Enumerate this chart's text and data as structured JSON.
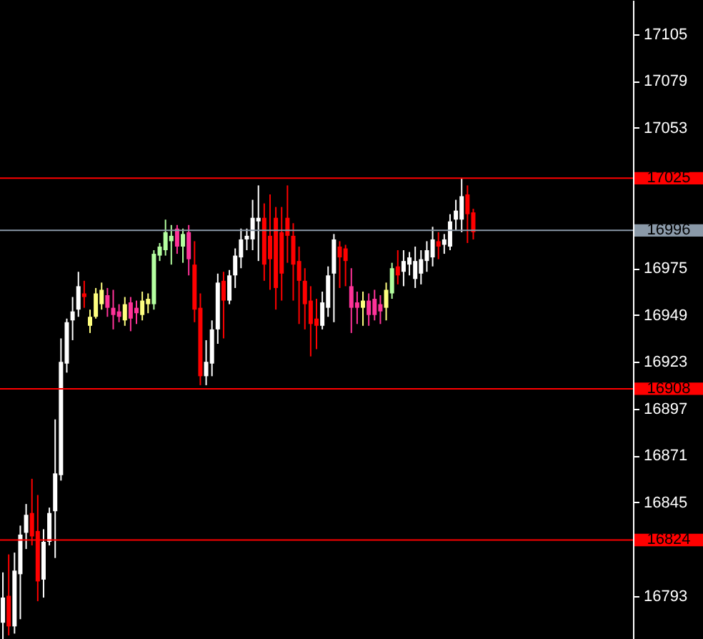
{
  "chart_data": {
    "type": "candlestick",
    "categories": [
      null,
      null,
      null,
      null,
      null,
      null,
      null,
      null,
      null,
      null,
      null,
      null,
      null,
      null,
      null,
      null,
      null,
      null,
      null,
      null,
      null,
      null,
      null,
      null,
      null,
      null,
      null,
      null,
      null,
      null,
      null,
      null,
      null,
      null,
      null,
      null,
      null,
      null,
      null,
      null,
      null,
      null,
      null,
      null,
      null,
      null,
      null,
      null,
      null,
      null,
      null,
      null,
      null,
      null,
      null,
      null,
      null,
      null,
      null,
      null,
      null,
      null,
      null,
      null,
      null,
      null,
      null,
      null,
      null,
      null,
      null,
      null,
      null,
      null,
      null,
      null,
      null,
      null,
      null,
      null,
      null,
      null,
      null,
      null,
      null,
      null,
      null,
      null,
      null,
      null,
      null,
      null,
      null,
      null,
      null,
      null,
      null,
      null,
      null,
      null,
      null,
      null,
      null,
      null,
      null,
      null,
      null,
      null,
      null
    ],
    "ohlc": [
      [
        16778,
        16806,
        16769,
        16792
      ],
      [
        16793,
        16816,
        16771,
        16776
      ],
      [
        16776,
        16817,
        16772,
        16807
      ],
      [
        16805,
        16832,
        16780,
        16827
      ],
      [
        16828,
        16844,
        16819,
        16838
      ],
      [
        16839,
        16858,
        16821,
        16826
      ],
      [
        16829,
        16849,
        16790,
        16801
      ],
      [
        16802,
        16830,
        16792,
        16823
      ],
      [
        16823,
        16842,
        16821,
        16839
      ],
      [
        16840,
        16891,
        16814,
        16861
      ],
      [
        16860,
        16936,
        16857,
        16923
      ],
      [
        16922,
        16947,
        16917,
        16945
      ],
      [
        16946,
        16959,
        16935,
        16951
      ],
      [
        16952,
        16973,
        16948,
        16965
      ],
      [
        16961,
        16968,
        16953,
        16959
      ],
      [
        16943,
        16952,
        16939,
        16948
      ],
      [
        16948,
        16964,
        16947,
        16961
      ],
      [
        16955,
        16967,
        16952,
        16963
      ],
      [
        16960,
        16964,
        16948,
        16953
      ],
      [
        16953,
        16963,
        16941,
        16949
      ],
      [
        16951,
        16955,
        16945,
        16948
      ],
      [
        16946,
        16959,
        16943,
        16955
      ],
      [
        16956,
        16959,
        16940,
        16947
      ],
      [
        16953,
        16957,
        16944,
        16950
      ],
      [
        16949,
        16962,
        16946,
        16957
      ],
      [
        16955,
        16961,
        16950,
        16958
      ],
      [
        16955,
        16985,
        16952,
        16983
      ],
      [
        16982,
        16989,
        16979,
        16987
      ],
      [
        16985,
        17002,
        16982,
        16995
      ],
      [
        16990,
        16999,
        16977,
        16993
      ],
      [
        16997,
        16999,
        16983,
        16987
      ],
      [
        16987,
        16997,
        16978,
        16994
      ],
      [
        16995,
        16999,
        16971,
        16980
      ],
      [
        16977,
        16990,
        16945,
        16952
      ],
      [
        16953,
        16961,
        16910,
        16915
      ],
      [
        16915,
        16935,
        16910,
        16923
      ],
      [
        16922,
        16946,
        16915,
        16941
      ],
      [
        16941,
        16972,
        16933,
        16967
      ],
      [
        16968,
        16973,
        16936,
        16957
      ],
      [
        16957,
        16974,
        16955,
        16971
      ],
      [
        16971,
        16986,
        16964,
        16982
      ],
      [
        16981,
        16997,
        16975,
        16991
      ],
      [
        16991,
        16997,
        16985,
        16993
      ],
      [
        16991,
        17013,
        16985,
        17003
      ],
      [
        17001,
        17021,
        16979,
        17003
      ],
      [
        17003,
        17011,
        16968,
        16977
      ],
      [
        16993,
        17016,
        16963,
        16980
      ],
      [
        17003,
        17009,
        16952,
        16964
      ],
      [
        16995,
        17009,
        16957,
        16972
      ],
      [
        17003,
        17021,
        16978,
        16993
      ],
      [
        16993,
        17000,
        16957,
        16977
      ],
      [
        16979,
        16987,
        16944,
        16968
      ],
      [
        16968,
        16975,
        16941,
        16955
      ],
      [
        16957,
        16965,
        16926,
        16944
      ],
      [
        16947,
        16958,
        16930,
        16943
      ],
      [
        16943,
        16962,
        16941,
        16956
      ],
      [
        16953,
        16976,
        16948,
        16971
      ],
      [
        16972,
        16994,
        16945,
        16991
      ],
      [
        16987,
        16990,
        16964,
        16981
      ],
      [
        16986,
        16988,
        16965,
        16979
      ],
      [
        16965,
        16975,
        16939,
        16953
      ],
      [
        16956,
        16962,
        16944,
        16953
      ],
      [
        16953,
        16962,
        16943,
        16957
      ],
      [
        16957,
        16961,
        16943,
        16949
      ],
      [
        16958,
        16963,
        16946,
        16949
      ],
      [
        16955,
        16960,
        16944,
        16951
      ],
      [
        16953,
        16967,
        16946,
        16963
      ],
      [
        16961,
        16978,
        16958,
        16975
      ],
      [
        16976,
        16985,
        16966,
        16971
      ],
      [
        16973,
        16985,
        16965,
        16979
      ],
      [
        16977,
        16984,
        16971,
        16981
      ],
      [
        16969,
        16987,
        16964,
        16979
      ],
      [
        16972,
        16985,
        16966,
        16980
      ],
      [
        16979,
        16990,
        16973,
        16985
      ],
      [
        16981,
        16998,
        16976,
        16991
      ],
      [
        16990,
        16995,
        16980,
        16987
      ],
      [
        16988,
        16994,
        16983,
        16991
      ],
      [
        16987,
        17005,
        16985,
        17001
      ],
      [
        17002,
        17013,
        16996,
        17007
      ],
      [
        17002,
        17025,
        16995,
        17015
      ],
      [
        17016,
        17021,
        16989,
        17005
      ],
      [
        17006,
        17008,
        16991,
        16995
      ],
      null,
      null,
      null,
      null,
      null,
      null,
      null,
      null,
      null,
      null,
      null,
      null,
      null,
      null,
      null,
      null,
      null,
      null,
      null,
      null,
      null,
      null,
      null,
      null,
      null,
      null,
      null
    ],
    "colors": [
      "#ffffff",
      "#ff0000",
      "#ffffff",
      "#ffffff",
      "#ffffff",
      "#ff0000",
      "#ff0000",
      "#ffffff",
      "#ffffff",
      "#ffffff",
      "#ffffff",
      "#ffffff",
      "#ffffff",
      "#ffffff",
      "#ff0000",
      "#ffff80",
      "#ffff80",
      "#ffff80",
      "#ff3399",
      "#ff3399",
      "#ff3399",
      "#ffff80",
      "#ff3399",
      "#ff3399",
      "#ffff80",
      "#ffff80",
      "#b4ffa0",
      "#b4ffa0",
      "#b4ffa0",
      "#b4ffa0",
      "#ff3399",
      "#b4ffa0",
      "#ff3399",
      "#ff0000",
      "#ff0000",
      "#ffffff",
      "#ffffff",
      "#ffffff",
      "#ff0000",
      "#ffffff",
      "#ffffff",
      "#ffffff",
      "#ffffff",
      "#ffffff",
      "#ffffff",
      "#ff0000",
      "#ff0000",
      "#ff0000",
      "#ff0000",
      "#ff0000",
      "#ff0000",
      "#ff0000",
      "#ff0000",
      "#ff0000",
      "#ff0000",
      "#ffffff",
      "#ffffff",
      "#ffffff",
      "#ff0000",
      "#ff0000",
      "#ff3399",
      "#ff3399",
      "#ffff80",
      "#ff3399",
      "#ff3399",
      "#ff3399",
      "#ffff80",
      "#b4ffa0",
      "#ff0000",
      "#ffffff",
      "#ffffff",
      "#ffffff",
      "#ffffff",
      "#ffffff",
      "#ffffff",
      "#ff0000",
      "#ffffff",
      "#ffffff",
      "#ffffff",
      "#ffffff",
      "#ff0000",
      "#ff0000",
      null,
      null,
      null,
      null,
      null,
      null,
      null,
      null,
      null,
      null,
      null,
      null,
      null,
      null,
      null,
      null,
      null,
      null,
      null,
      null,
      null,
      null,
      null,
      null,
      null,
      null,
      null
    ],
    "ref_lines": [
      {
        "axis": "y",
        "value": 17025,
        "label": "17025",
        "color": "#ff0000"
      },
      {
        "axis": "y",
        "value": 16996,
        "label": "16996",
        "color": "#8a99a8"
      },
      {
        "axis": "y",
        "value": 16908,
        "label": "16908",
        "color": "#ff0000"
      },
      {
        "axis": "y",
        "value": 16824,
        "label": "16824",
        "color": "#ff0000"
      }
    ],
    "ylim": [
      16769,
      17124
    ],
    "yticks": [
      17105,
      17079,
      17053,
      16975,
      16949,
      16923,
      16897,
      16871,
      16845,
      16793
    ],
    "tick_labels": "y"
  }
}
